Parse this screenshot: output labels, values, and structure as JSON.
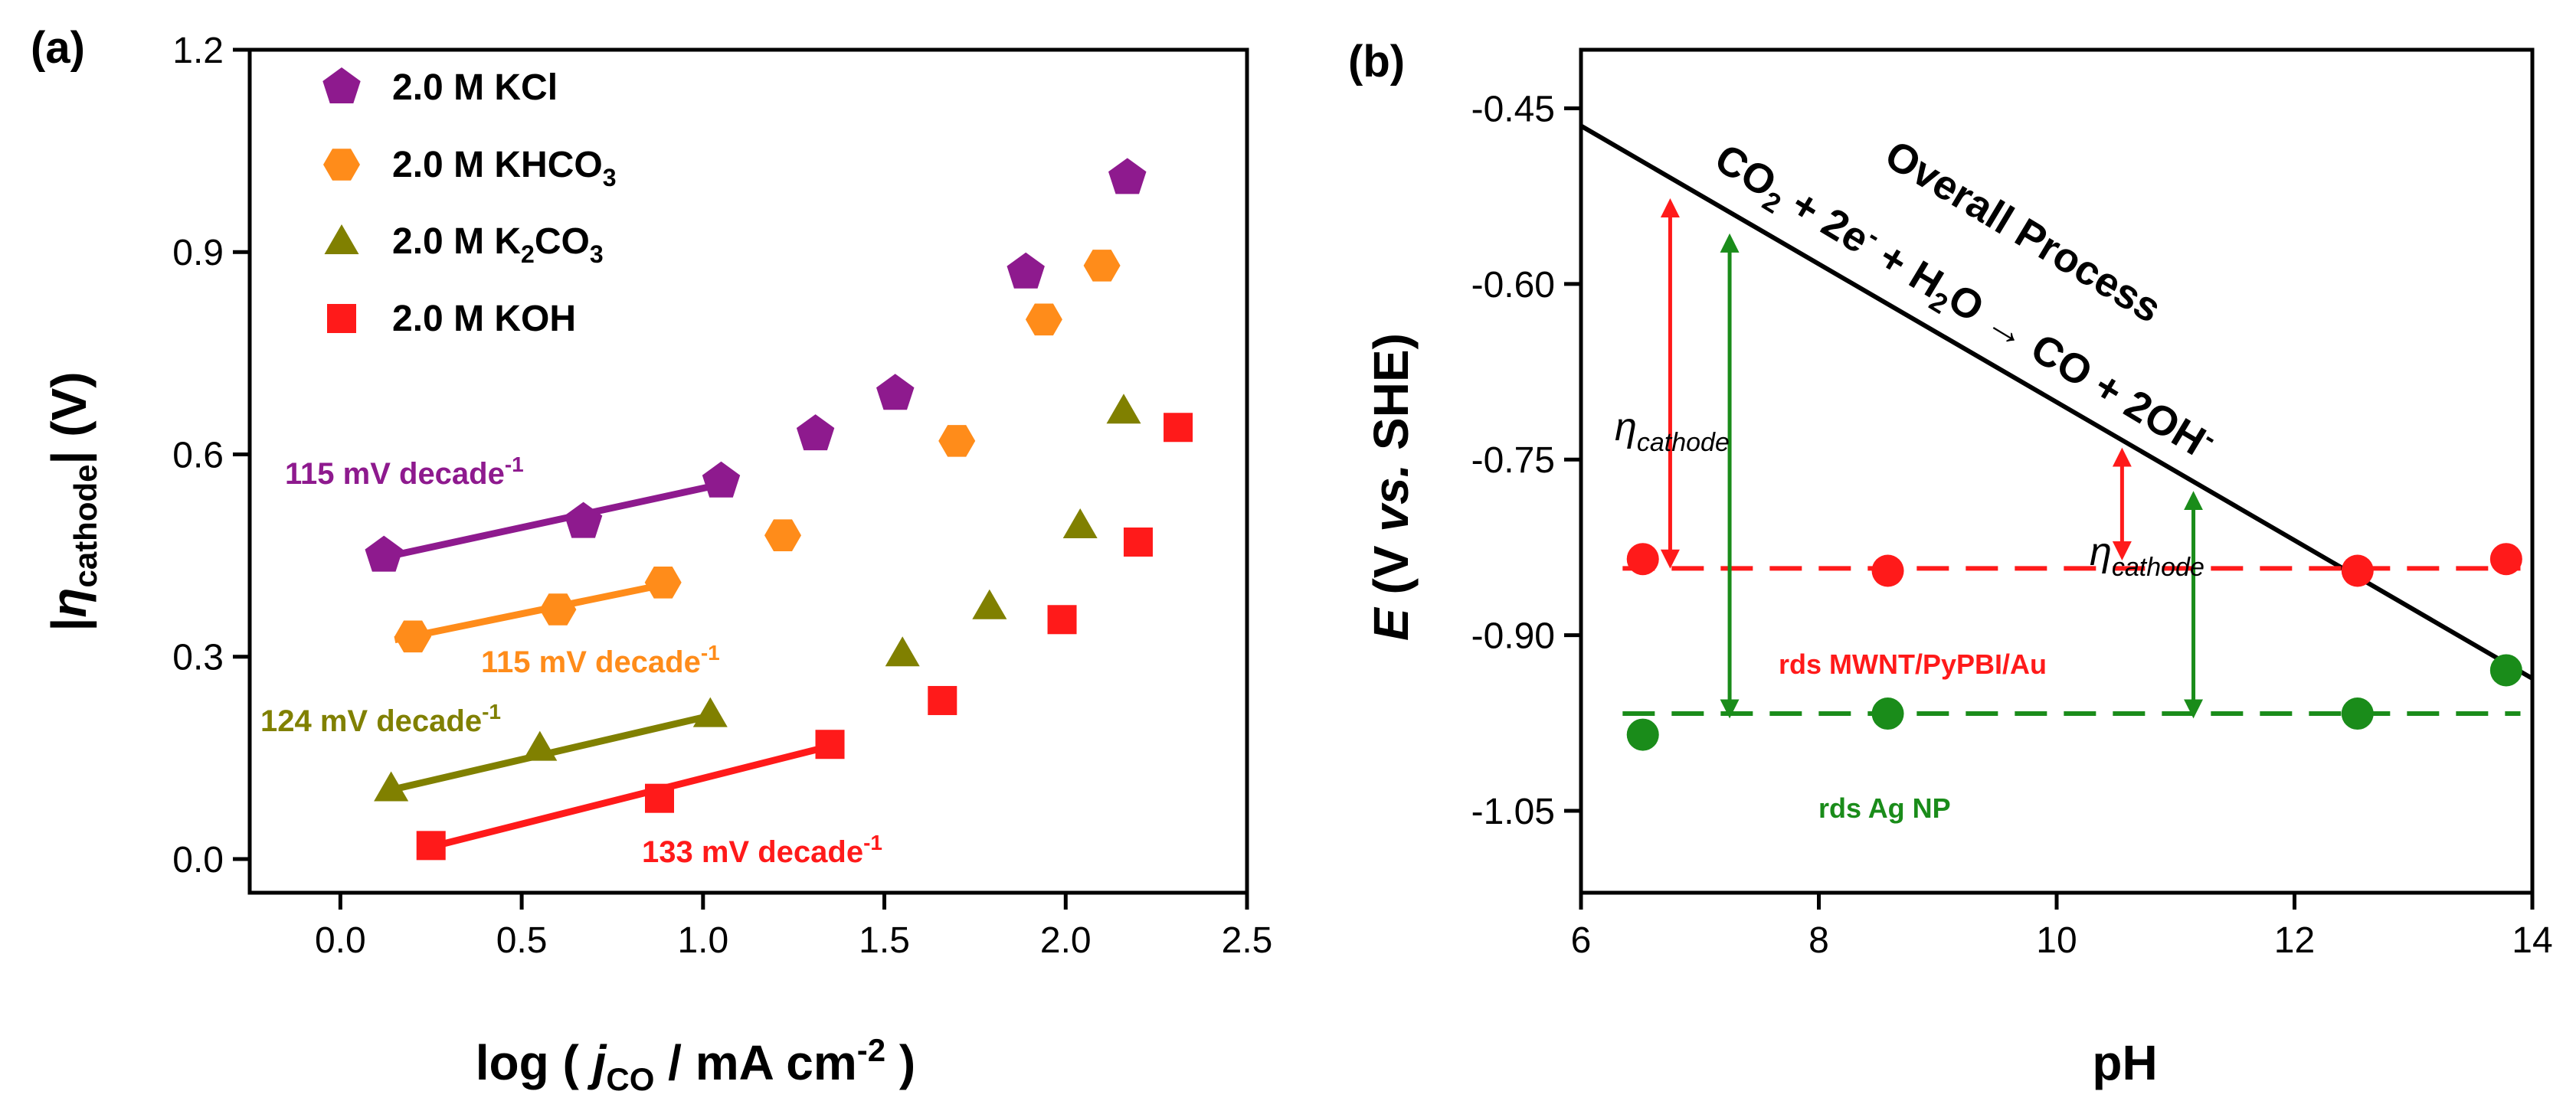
{
  "colors": {
    "purple": "#8E1A8E",
    "orange": "#FF8C1A",
    "olive": "#808000",
    "red": "#FF1A1A",
    "green": "#1A8C1A",
    "black": "#000000"
  },
  "chart_data": [
    {
      "panel_label": "(a)",
      "type": "scatter",
      "xlabel": {
        "prefix": "log ( ",
        "var": "j",
        "sub": "CO",
        "mid": " / mA cm",
        "sup": "-2",
        "suffix": " )"
      },
      "ylabel": {
        "open": "|",
        "var": "η",
        "sub": "cathode",
        "close": "| (V)"
      },
      "xlim": [
        -0.25,
        2.5
      ],
      "ylim": [
        -0.05,
        1.2
      ],
      "xticks": [
        "0.0",
        "0.5",
        "1.0",
        "1.5",
        "2.0",
        "2.5"
      ],
      "yticks": [
        "0.0",
        "0.3",
        "0.6",
        "0.9",
        "1.2"
      ],
      "legend_position": "top-left",
      "series": [
        {
          "name": "2.0 M KCl",
          "legend": {
            "base": "2.0 M KCl",
            "sub": "",
            "tail": ""
          },
          "marker": "pentagon",
          "color": "#8E1A8E",
          "x": [
            0.12,
            0.67,
            1.05,
            1.31,
            1.53,
            1.89,
            2.17
          ],
          "y": [
            0.45,
            0.5,
            0.56,
            0.63,
            0.69,
            0.87,
            1.01
          ],
          "fit": {
            "x": [
              0.1,
              1.07
            ],
            "y": [
              0.445,
              0.558
            ]
          },
          "slope_label": {
            "main": "115 mV decade",
            "sup": "-1"
          }
        },
        {
          "name": "2.0 M KHCO3",
          "legend": {
            "base": "2.0 M KHCO",
            "sub": "3",
            "tail": ""
          },
          "marker": "hexagon",
          "color": "#FF8C1A",
          "x": [
            0.2,
            0.6,
            0.89,
            1.22,
            1.7,
            1.94,
            2.1
          ],
          "y": [
            0.33,
            0.37,
            0.41,
            0.48,
            0.62,
            0.8,
            0.88
          ],
          "fit": {
            "x": [
              0.15,
              0.92
            ],
            "y": [
              0.325,
              0.41
            ]
          },
          "slope_label": {
            "main": "115 mV decade",
            "sup": "-1"
          }
        },
        {
          "name": "2.0 M K2CO3",
          "legend": {
            "base": "2.0 M K",
            "sub": "2",
            "tail": "CO",
            "sub2": "3"
          },
          "marker": "triangle",
          "color": "#808000",
          "x": [
            0.14,
            0.55,
            1.02,
            1.55,
            1.79,
            2.04,
            2.16
          ],
          "y": [
            0.105,
            0.165,
            0.215,
            0.305,
            0.375,
            0.495,
            0.665
          ],
          "fit": {
            "x": [
              0.12,
              1.04
            ],
            "y": [
              0.1,
              0.215
            ]
          },
          "slope_label": {
            "main": "124 mV decade",
            "sup": "-1"
          }
        },
        {
          "name": "2.0 M KOH",
          "legend": {
            "base": "2.0 M KOH",
            "sub": "",
            "tail": ""
          },
          "marker": "square",
          "color": "#FF1A1A",
          "x": [
            0.25,
            0.88,
            1.35,
            1.66,
            1.99,
            2.2,
            2.31
          ],
          "y": [
            0.02,
            0.09,
            0.17,
            0.235,
            0.355,
            0.47,
            0.64
          ],
          "fit": {
            "x": [
              0.25,
              1.37
            ],
            "y": [
              0.018,
              0.17
            ]
          },
          "slope_label": {
            "main": "133 mV decade",
            "sup": "-1"
          }
        }
      ]
    },
    {
      "panel_label": "(b)",
      "type": "line",
      "xlabel": "pH",
      "ylabel": {
        "var": "E",
        "rest": " (V ",
        "vs": "vs.",
        "end": " SHE)"
      },
      "xlim": [
        6,
        14
      ],
      "ylim": [
        -1.12,
        -0.4
      ],
      "xticks": [
        "6",
        "8",
        "10",
        "12",
        "14"
      ],
      "yticks": [
        "-0.45",
        "-0.60",
        "-0.75",
        "-0.90",
        "-1.05"
      ],
      "overall_line": {
        "x": [
          6,
          14
        ],
        "y": [
          -0.465,
          -0.937
        ]
      },
      "overall_label": "Overall Process",
      "reaction": {
        "co": "CO",
        "two": "2",
        "mid": " + 2e",
        "esup": "-",
        "plus": " + H",
        "h2": "2",
        "arrow": "O → CO + 2OH",
        "ohsup": "-"
      },
      "series": [
        {
          "name": "rds MWNT/PyPBI/Au",
          "color": "#FF1A1A",
          "level": -0.843,
          "x": [
            6.52,
            8.58,
            12.53,
            13.78
          ],
          "y": [
            -0.835,
            -0.845,
            -0.845,
            -0.835
          ]
        },
        {
          "name": "rds Ag NP",
          "color": "#1A8C1A",
          "level": -0.967,
          "x": [
            6.52,
            8.58,
            12.53,
            13.78
          ],
          "y": [
            -0.985,
            -0.967,
            -0.967,
            -0.93
          ]
        }
      ],
      "eta_label": {
        "var": "η",
        "sub": "cathode"
      },
      "overpotential_arrows": [
        {
          "color": "#FF1A1A",
          "x": 6.75,
          "y1": -0.535,
          "y2": -0.835
        },
        {
          "color": "#1A8C1A",
          "x": 7.25,
          "y1": -0.565,
          "y2": -0.963
        },
        {
          "color": "#FF1A1A",
          "x": 10.55,
          "y1": -0.748,
          "y2": -0.828
        },
        {
          "color": "#1A8C1A",
          "x": 11.15,
          "y1": -0.785,
          "y2": -0.963
        }
      ]
    }
  ]
}
